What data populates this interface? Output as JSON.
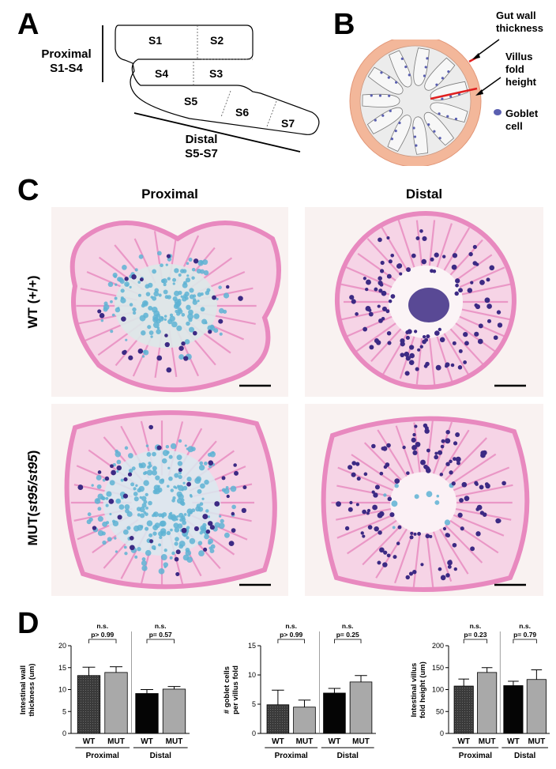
{
  "panels": {
    "A": "A",
    "B": "B",
    "C": "C",
    "D": "D"
  },
  "panelA": {
    "segments": [
      "S1",
      "S2",
      "S3",
      "S4",
      "S5",
      "S6",
      "S7"
    ],
    "proximal_title": "Proximal",
    "proximal_range": "S1-S4",
    "distal_title": "Distal",
    "distal_range": "S5-S7"
  },
  "panelB": {
    "gut_wall_line1": "Gut wall",
    "gut_wall_line2": "thickness",
    "villus_line1": "Villus",
    "villus_line2": "fold",
    "villus_line3": "height",
    "goblet_line1": "Goblet",
    "goblet_line2": "cell",
    "colors": {
      "wall": "#f3b79a",
      "lumen": "#eeeeee",
      "fold": "#f7f7f7",
      "goblet": "#5a5fb0",
      "pointer": "#e02020"
    }
  },
  "panelC": {
    "col_proximal": "Proximal",
    "col_distal": "Distal",
    "row_wt": "WT (+/+)",
    "row_mut_prefix": "MUT(",
    "row_mut_genotype": "st95/st95",
    "row_mut_suffix": ")",
    "colors": {
      "tissue_pink": "#e889bf",
      "alcian_blue": "#5eb3d4",
      "goblet_purple": "#3c2a84",
      "background": "#f9f2f1"
    }
  },
  "chart_data": [
    {
      "type": "bar",
      "ylabel_line1": "Intestinal wall",
      "ylabel_line2": "thickness (um)",
      "ylim": [
        0,
        20
      ],
      "yticks": [
        "0",
        "5",
        "10",
        "15",
        "20"
      ],
      "categories": [
        "WT",
        "MUT",
        "WT",
        "MUT"
      ],
      "groups": [
        "Proximal",
        "Distal"
      ],
      "values": [
        13.2,
        13.9,
        9.1,
        10.1
      ],
      "errors": [
        1.9,
        1.3,
        0.9,
        0.6
      ],
      "bar_fill": [
        "dark-hatched",
        "light-grey",
        "black",
        "light-grey"
      ],
      "sig_labels": [
        "n.s.",
        "n.s."
      ],
      "p_values": [
        "p> 0.99",
        "p= 0.57"
      ]
    },
    {
      "type": "bar",
      "ylabel_line1": "# goblet cells",
      "ylabel_line2": "per villus fold",
      "ylim": [
        0,
        15
      ],
      "yticks": [
        "0",
        "5",
        "10",
        "15"
      ],
      "categories": [
        "WT",
        "MUT",
        "WT",
        "MUT"
      ],
      "groups": [
        "Proximal",
        "Distal"
      ],
      "values": [
        4.9,
        4.5,
        6.9,
        8.8
      ],
      "errors": [
        2.5,
        1.2,
        0.8,
        1.1
      ],
      "bar_fill": [
        "dark-hatched",
        "light-grey",
        "black",
        "light-grey"
      ],
      "sig_labels": [
        "n.s.",
        "n.s."
      ],
      "p_values": [
        "p> 0.99",
        "p= 0.25"
      ]
    },
    {
      "type": "bar",
      "ylabel_line1": "Intestinal villus",
      "ylabel_line2": "fold height (um)",
      "ylim": [
        0,
        200
      ],
      "yticks": [
        "0",
        "50",
        "100",
        "150",
        "200"
      ],
      "categories": [
        "WT",
        "MUT",
        "WT",
        "MUT"
      ],
      "groups": [
        "Proximal",
        "Distal"
      ],
      "values": [
        108,
        139,
        109,
        123
      ],
      "errors": [
        16,
        11,
        10,
        22
      ],
      "bar_fill": [
        "dark-hatched",
        "light-grey",
        "black",
        "light-grey"
      ],
      "sig_labels": [
        "n.s.",
        "n.s."
      ],
      "p_values": [
        "p= 0.23",
        "p= 0.79"
      ]
    }
  ]
}
